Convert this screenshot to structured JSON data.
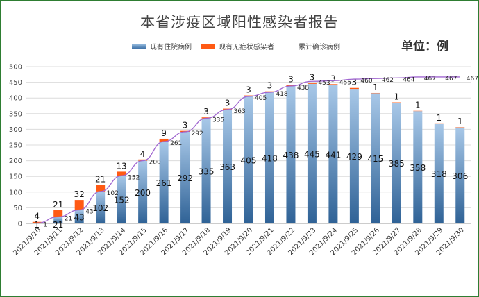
{
  "chart_data": {
    "type": "bar",
    "title": "本省涉疫区域阳性感染者报告",
    "unit_label": "单位：例",
    "categories": [
      "2021/9/10",
      "2021/9/11",
      "2021/9/12",
      "2021/9/13",
      "2021/9/14",
      "2021/9/15",
      "2021/9/16",
      "2021/9/17",
      "2021/9/18",
      "2021/9/19",
      "2021/9/20",
      "2021/9/21",
      "2021/9/22",
      "2021/9/23",
      "2021/9/24",
      "2021/9/25",
      "2021/9/26",
      "2021/9/27",
      "2021/9/28",
      "2021/9/29",
      "2021/9/30"
    ],
    "series": [
      {
        "name": "现有住院病例",
        "kind": "bar-stack",
        "color": "#3f72a8",
        "values": [
          1,
          21,
          43,
          102,
          152,
          200,
          261,
          292,
          335,
          363,
          405,
          418,
          438,
          445,
          441,
          429,
          415,
          385,
          358,
          318,
          306
        ],
        "labels": [
          "1",
          "21",
          "43",
          "102",
          "152",
          "200",
          "261",
          "292",
          "335",
          "363",
          "405",
          "418",
          "438",
          "445",
          "441",
          "429",
          "415",
          "385",
          "358",
          "318",
          "306"
        ]
      },
      {
        "name": "现有无症状感染者",
        "kind": "bar-stack",
        "color": "#ff5a14",
        "values": [
          4,
          21,
          32,
          21,
          13,
          4,
          9,
          3,
          3,
          3,
          3,
          3,
          3,
          3,
          3,
          3,
          1,
          1,
          1,
          1,
          1
        ],
        "labels": [
          "4",
          "21",
          "32",
          "21",
          "13",
          "4",
          "9",
          "3",
          "3",
          "3",
          "3",
          "3",
          "3",
          "3",
          "3",
          "3",
          "1",
          "1",
          "1",
          "1",
          "1"
        ]
      },
      {
        "name": "累计确诊病例",
        "kind": "line",
        "color": "#a066d0",
        "values": [
          1,
          21,
          43,
          102,
          152,
          200,
          261,
          292,
          335,
          363,
          405,
          418,
          438,
          453,
          455,
          460,
          462,
          464,
          467,
          467,
          467
        ],
        "labels": [
          "1",
          "21",
          "43",
          "102",
          "152",
          "200",
          "261",
          "292",
          "335",
          "363",
          "405",
          "418",
          "438",
          "453",
          "455",
          "460",
          "462",
          "464",
          "467",
          "467",
          "467"
        ]
      }
    ],
    "ylim": [
      0,
      500
    ],
    "yticks": [
      "0",
      "50",
      "100",
      "150",
      "200",
      "250",
      "300",
      "350",
      "400",
      "450",
      "500"
    ],
    "legend_position": "top",
    "grid": true
  }
}
